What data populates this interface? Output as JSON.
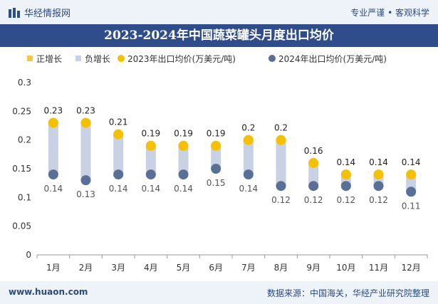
{
  "header": {
    "brand": "华经情报网",
    "tagline": "专业严谨 • 客观科学"
  },
  "footer": {
    "site": "www.huaon.com",
    "source": "数据来源：中国海关，华经产业研究院整理"
  },
  "colors": {
    "title_bg": "#2f4d8a",
    "positive": "#f2c94c",
    "negative": "#c8d2e4",
    "series_2023": "#f5c000",
    "series_2024": "#5a6f96"
  },
  "chart_data": {
    "type": "line",
    "title": "2023-2024年中国蔬菜罐头月度出口均价",
    "categories": [
      "1月",
      "2月",
      "3月",
      "4月",
      "5月",
      "6月",
      "7月",
      "8月",
      "9月",
      "10月",
      "11月",
      "12月"
    ],
    "series": [
      {
        "name": "2023年出口均价(万美元/吨)",
        "values": [
          0.23,
          0.23,
          0.21,
          0.19,
          0.19,
          0.19,
          0.2,
          0.2,
          0.16,
          0.14,
          0.14,
          0.14
        ]
      },
      {
        "name": "2024年出口均价(万美元/吨)",
        "values": [
          0.14,
          0.13,
          0.14,
          0.14,
          0.14,
          0.15,
          0.14,
          0.12,
          0.12,
          0.12,
          0.12,
          0.11
        ]
      }
    ],
    "legend": [
      "正增长",
      "负增长",
      "2023年出口均价(万美元/吨)",
      "2024年出口均价(万美元/吨)"
    ],
    "yticks": [
      "0",
      "0.05",
      "0.1",
      "0.15",
      "0.2",
      "0.25",
      "0.3"
    ],
    "ylim": [
      0,
      0.3
    ],
    "legend_position": "top-left",
    "grid": false
  }
}
